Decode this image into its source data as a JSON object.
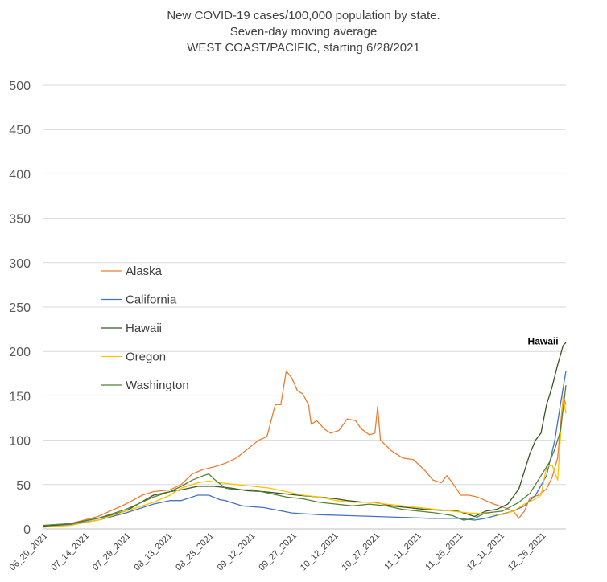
{
  "chart_data": {
    "type": "line",
    "title": [
      "New COVID-19 cases/100,000 population by state.",
      "Seven-day moving average",
      "WEST COAST/PACIFIC, starting 6/28/2021"
    ],
    "xlabel": "",
    "ylabel": "",
    "ylim": [
      0,
      500
    ],
    "yticks": [
      0,
      50,
      100,
      150,
      200,
      250,
      300,
      350,
      400,
      450,
      500
    ],
    "x_tick_labels": [
      "06_29_2021",
      "07_14_2021",
      "07_29_2021",
      "08_13_2021",
      "08_28_2021",
      "09_12_2021",
      "09_27_2021",
      "10_12_2021",
      "10_27_2021",
      "11_11_2021",
      "11_26_2021",
      "12_11_2021",
      "12_26_2021"
    ],
    "x_tick_day_index": [
      1,
      16,
      31,
      46,
      61,
      76,
      91,
      106,
      121,
      136,
      151,
      166,
      181
    ],
    "grid": "horizontal",
    "legend_position": "left-middle",
    "annotation": {
      "text": "Hawaii",
      "day": 188,
      "y": 207
    },
    "series": [
      {
        "name": "Alaska",
        "color": "#ED7D31",
        "points": [
          [
            0,
            4
          ],
          [
            10,
            6
          ],
          [
            20,
            14
          ],
          [
            30,
            28
          ],
          [
            36,
            38
          ],
          [
            40,
            42
          ],
          [
            46,
            44
          ],
          [
            50,
            50
          ],
          [
            54,
            62
          ],
          [
            58,
            67
          ],
          [
            62,
            70
          ],
          [
            66,
            74
          ],
          [
            70,
            80
          ],
          [
            74,
            90
          ],
          [
            78,
            100
          ],
          [
            81,
            104
          ],
          [
            84,
            140
          ],
          [
            86,
            140
          ],
          [
            88,
            178
          ],
          [
            90,
            170
          ],
          [
            92,
            156
          ],
          [
            94,
            152
          ],
          [
            96,
            140
          ],
          [
            97,
            118
          ],
          [
            99,
            122
          ],
          [
            102,
            112
          ],
          [
            104,
            108
          ],
          [
            107,
            111
          ],
          [
            110,
            124
          ],
          [
            113,
            122
          ],
          [
            115,
            113
          ],
          [
            118,
            106
          ],
          [
            120,
            108
          ],
          [
            121,
            138
          ],
          [
            122,
            100
          ],
          [
            126,
            88
          ],
          [
            130,
            80
          ],
          [
            134,
            78
          ],
          [
            138,
            66
          ],
          [
            141,
            55
          ],
          [
            144,
            52
          ],
          [
            146,
            60
          ],
          [
            148,
            52
          ],
          [
            151,
            38
          ],
          [
            154,
            38
          ],
          [
            157,
            36
          ],
          [
            160,
            32
          ],
          [
            163,
            28
          ],
          [
            166,
            25
          ],
          [
            170,
            20
          ],
          [
            172,
            12
          ],
          [
            174,
            20
          ],
          [
            176,
            35
          ],
          [
            179,
            38
          ],
          [
            182,
            45
          ],
          [
            184,
            58
          ],
          [
            186,
            80
          ],
          [
            188,
            150
          ],
          [
            189,
            140
          ]
        ]
      },
      {
        "name": "California",
        "color": "#4472C4",
        "points": [
          [
            0,
            2
          ],
          [
            10,
            5
          ],
          [
            20,
            10
          ],
          [
            30,
            18
          ],
          [
            40,
            28
          ],
          [
            46,
            32
          ],
          [
            50,
            32
          ],
          [
            56,
            38
          ],
          [
            60,
            38
          ],
          [
            64,
            33
          ],
          [
            66,
            32
          ],
          [
            72,
            26
          ],
          [
            80,
            24
          ],
          [
            90,
            18
          ],
          [
            100,
            16
          ],
          [
            110,
            15
          ],
          [
            120,
            14
          ],
          [
            130,
            13
          ],
          [
            140,
            12
          ],
          [
            150,
            12
          ],
          [
            156,
            10
          ],
          [
            160,
            12
          ],
          [
            165,
            16
          ],
          [
            170,
            20
          ],
          [
            174,
            26
          ],
          [
            178,
            38
          ],
          [
            182,
            60
          ],
          [
            185,
            100
          ],
          [
            187,
            140
          ],
          [
            189,
            178
          ]
        ]
      },
      {
        "name": "Hawaii",
        "color": "#375623",
        "points": [
          [
            0,
            3
          ],
          [
            10,
            6
          ],
          [
            20,
            12
          ],
          [
            30,
            20
          ],
          [
            40,
            38
          ],
          [
            46,
            42
          ],
          [
            50,
            44
          ],
          [
            56,
            48
          ],
          [
            62,
            48
          ],
          [
            68,
            46
          ],
          [
            74,
            43
          ],
          [
            80,
            42
          ],
          [
            86,
            40
          ],
          [
            92,
            38
          ],
          [
            100,
            36
          ],
          [
            106,
            34
          ],
          [
            110,
            32
          ],
          [
            116,
            30
          ],
          [
            120,
            30
          ],
          [
            126,
            26
          ],
          [
            132,
            24
          ],
          [
            138,
            22
          ],
          [
            144,
            21
          ],
          [
            150,
            20
          ],
          [
            156,
            14
          ],
          [
            160,
            20
          ],
          [
            164,
            22
          ],
          [
            168,
            28
          ],
          [
            172,
            45
          ],
          [
            176,
            85
          ],
          [
            178,
            100
          ],
          [
            180,
            108
          ],
          [
            182,
            140
          ],
          [
            184,
            160
          ],
          [
            186,
            185
          ],
          [
            188,
            207
          ],
          [
            189,
            210
          ]
        ]
      },
      {
        "name": "Oregon",
        "color": "#FFC000",
        "points": [
          [
            0,
            2
          ],
          [
            10,
            4
          ],
          [
            20,
            10
          ],
          [
            30,
            20
          ],
          [
            40,
            30
          ],
          [
            46,
            38
          ],
          [
            50,
            46
          ],
          [
            56,
            52
          ],
          [
            60,
            54
          ],
          [
            64,
            52
          ],
          [
            70,
            50
          ],
          [
            76,
            48
          ],
          [
            82,
            46
          ],
          [
            88,
            42
          ],
          [
            94,
            38
          ],
          [
            100,
            36
          ],
          [
            106,
            32
          ],
          [
            112,
            30
          ],
          [
            118,
            30
          ],
          [
            124,
            28
          ],
          [
            130,
            26
          ],
          [
            136,
            24
          ],
          [
            142,
            22
          ],
          [
            148,
            20
          ],
          [
            154,
            18
          ],
          [
            160,
            17
          ],
          [
            166,
            16
          ],
          [
            170,
            20
          ],
          [
            174,
            28
          ],
          [
            178,
            34
          ],
          [
            180,
            38
          ],
          [
            182,
            70
          ],
          [
            184,
            72
          ],
          [
            186,
            55
          ],
          [
            188,
            150
          ],
          [
            189,
            130
          ]
        ]
      },
      {
        "name": "Washington",
        "color": "#548235",
        "points": [
          [
            0,
            4
          ],
          [
            10,
            6
          ],
          [
            20,
            12
          ],
          [
            30,
            22
          ],
          [
            40,
            36
          ],
          [
            46,
            42
          ],
          [
            50,
            48
          ],
          [
            54,
            55
          ],
          [
            58,
            60
          ],
          [
            60,
            62
          ],
          [
            62,
            56
          ],
          [
            66,
            46
          ],
          [
            70,
            44
          ],
          [
            76,
            44
          ],
          [
            82,
            40
          ],
          [
            88,
            36
          ],
          [
            94,
            34
          ],
          [
            100,
            30
          ],
          [
            106,
            28
          ],
          [
            112,
            26
          ],
          [
            118,
            28
          ],
          [
            124,
            26
          ],
          [
            130,
            22
          ],
          [
            136,
            20
          ],
          [
            142,
            18
          ],
          [
            148,
            15
          ],
          [
            152,
            10
          ],
          [
            156,
            12
          ],
          [
            160,
            18
          ],
          [
            166,
            20
          ],
          [
            172,
            30
          ],
          [
            176,
            40
          ],
          [
            180,
            60
          ],
          [
            183,
            75
          ],
          [
            185,
            90
          ],
          [
            187,
            110
          ],
          [
            189,
            162
          ]
        ]
      }
    ]
  }
}
